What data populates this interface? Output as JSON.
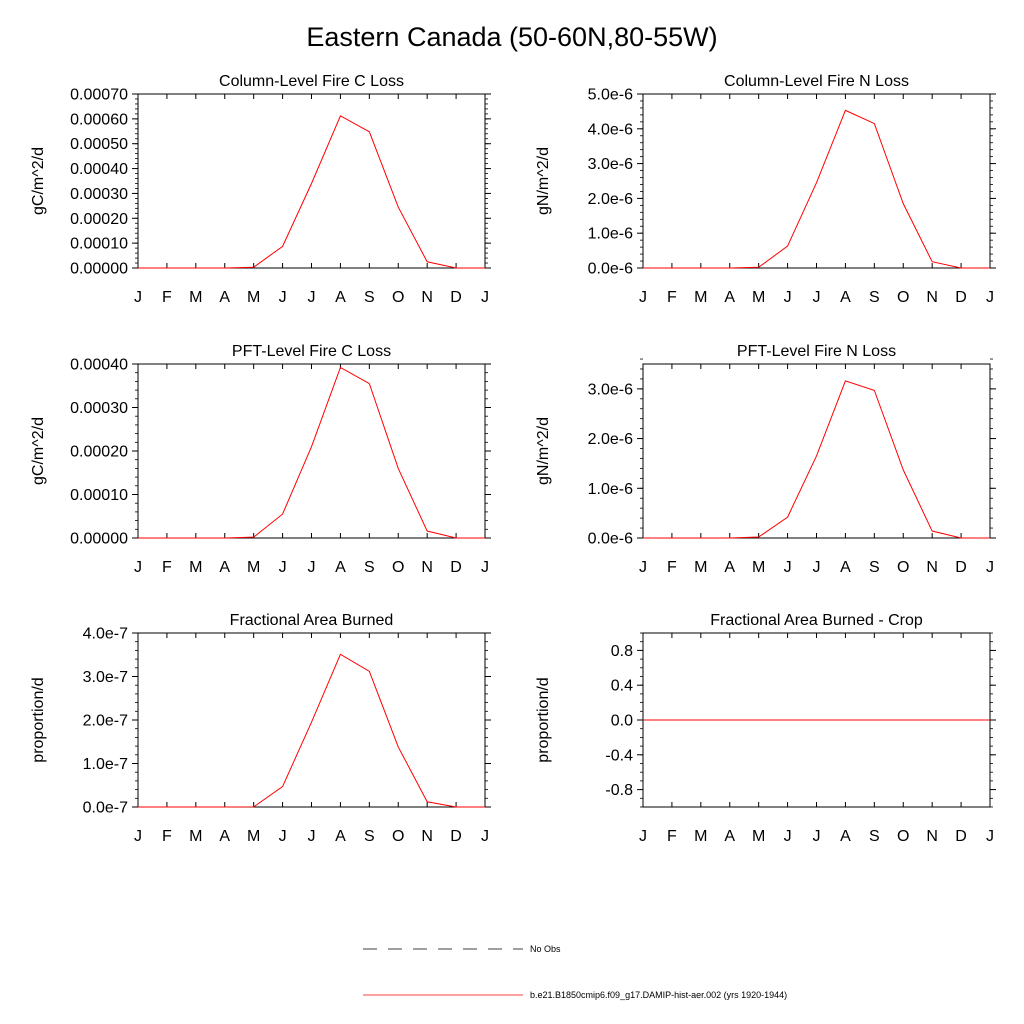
{
  "figure": {
    "title": "Eastern Canada (50-60N,80-55W)"
  },
  "legend": {
    "items": [
      {
        "label": "No Obs",
        "style": "dashed",
        "color": "#000000"
      },
      {
        "label": "b.e21.B1850cmip6.f09_g17.DAMIP-hist-aer.002 (yrs 1920-1944)",
        "style": "solid",
        "color": "#ff0000"
      }
    ]
  },
  "colors": {
    "series": "#ff0000",
    "axis": "#000000"
  },
  "chart_data": [
    {
      "type": "line",
      "title": "Column-Level Fire C Loss",
      "ylabel": "gC/m^2/d",
      "categories": [
        "J",
        "F",
        "M",
        "A",
        "M",
        "J",
        "J",
        "A",
        "S",
        "O",
        "N",
        "D",
        "J"
      ],
      "ylim": [
        0,
        0.0007
      ],
      "yticks": [
        0,
        0.0001,
        0.0002,
        0.0003,
        0.0004,
        0.0005,
        0.0006,
        0.0007
      ],
      "ytick_labels": [
        "0.00000",
        "0.00010",
        "0.00020",
        "0.00030",
        "0.00040",
        "0.00050",
        "0.00060",
        "0.00070"
      ],
      "y_minor": 2e-05,
      "series": [
        {
          "values": [
            0,
            0,
            0,
            0,
            3e-06,
            8.7e-05,
            0.00034,
            0.000612,
            0.000548,
            0.000245,
            2.5e-05,
            0,
            0
          ]
        }
      ]
    },
    {
      "type": "line",
      "title": "Column-Level Fire N Loss",
      "ylabel": "gN/m^2/d",
      "categories": [
        "J",
        "F",
        "M",
        "A",
        "M",
        "J",
        "J",
        "A",
        "S",
        "O",
        "N",
        "D",
        "J"
      ],
      "ylim": [
        0,
        5e-06
      ],
      "yticks": [
        0,
        1e-06,
        2e-06,
        3e-06,
        4e-06,
        5e-06
      ],
      "ytick_labels": [
        "0.0e-6",
        "1.0e-6",
        "2.0e-6",
        "3.0e-6",
        "4.0e-6",
        "5.0e-6"
      ],
      "y_minor": 2e-07,
      "series": [
        {
          "values": [
            0,
            0,
            0,
            0,
            2e-08,
            6.3e-07,
            2.45e-06,
            4.53e-06,
            4.15e-06,
            1.85e-06,
            1.8e-07,
            0,
            0
          ]
        }
      ]
    },
    {
      "type": "line",
      "title": "PFT-Level Fire C Loss",
      "ylabel": "gC/m^2/d",
      "categories": [
        "J",
        "F",
        "M",
        "A",
        "M",
        "J",
        "J",
        "A",
        "S",
        "O",
        "N",
        "D",
        "J"
      ],
      "ylim": [
        0,
        0.0004
      ],
      "yticks": [
        0,
        0.0001,
        0.0002,
        0.0003,
        0.0004
      ],
      "ytick_labels": [
        "0.00000",
        "0.00010",
        "0.00020",
        "0.00030",
        "0.00040"
      ],
      "y_minor": 2e-05,
      "series": [
        {
          "values": [
            0,
            0,
            0,
            0,
            2e-06,
            5.5e-05,
            0.00021,
            0.000392,
            0.000355,
            0.00016,
            1.6e-05,
            0,
            0
          ]
        }
      ]
    },
    {
      "type": "line",
      "title": "PFT-Level Fire N Loss",
      "ylabel": "gN/m^2/d",
      "categories": [
        "J",
        "F",
        "M",
        "A",
        "M",
        "J",
        "J",
        "A",
        "S",
        "O",
        "N",
        "D",
        "J"
      ],
      "ylim": [
        0,
        3.5e-06
      ],
      "yticks": [
        0,
        1e-06,
        2e-06,
        3e-06
      ],
      "ytick_labels": [
        "0.0e-6",
        "1.0e-6",
        "2.0e-6",
        "3.0e-6"
      ],
      "y_minor": 2e-07,
      "series": [
        {
          "values": [
            0,
            0,
            0,
            0,
            2e-08,
            4.2e-07,
            1.65e-06,
            3.16e-06,
            2.97e-06,
            1.37e-06,
            1.4e-07,
            0,
            0
          ]
        }
      ]
    },
    {
      "type": "line",
      "title": "Fractional Area Burned",
      "ylabel": "proportion/d",
      "categories": [
        "J",
        "F",
        "M",
        "A",
        "M",
        "J",
        "J",
        "A",
        "S",
        "O",
        "N",
        "D",
        "J"
      ],
      "ylim": [
        0,
        4e-07
      ],
      "yticks": [
        0,
        1e-07,
        2e-07,
        3e-07,
        4e-07
      ],
      "ytick_labels": [
        "0.0e-7",
        "1.0e-7",
        "2.0e-7",
        "3.0e-7",
        "4.0e-7"
      ],
      "y_minor": 2e-08,
      "series": [
        {
          "values": [
            0,
            0,
            0,
            0,
            2e-10,
            4.7e-08,
            1.95e-07,
            3.51e-07,
            3.12e-07,
            1.38e-07,
            1.2e-08,
            0,
            0
          ]
        }
      ]
    },
    {
      "type": "line",
      "title": "Fractional Area Burned - Crop",
      "ylabel": "proportion/d",
      "categories": [
        "J",
        "F",
        "M",
        "A",
        "M",
        "J",
        "J",
        "A",
        "S",
        "O",
        "N",
        "D",
        "J"
      ],
      "ylim": [
        -1,
        1
      ],
      "yticks": [
        -0.8,
        -0.4,
        0,
        0.4,
        0.8
      ],
      "ytick_labels": [
        "-0.8",
        "-0.4",
        "0.0",
        "0.4",
        "0.8"
      ],
      "y_minor": 0.1,
      "series": [
        {
          "values": [
            0,
            0,
            0,
            0,
            0,
            0,
            0,
            0,
            0,
            0,
            0,
            0,
            0
          ]
        }
      ]
    }
  ]
}
